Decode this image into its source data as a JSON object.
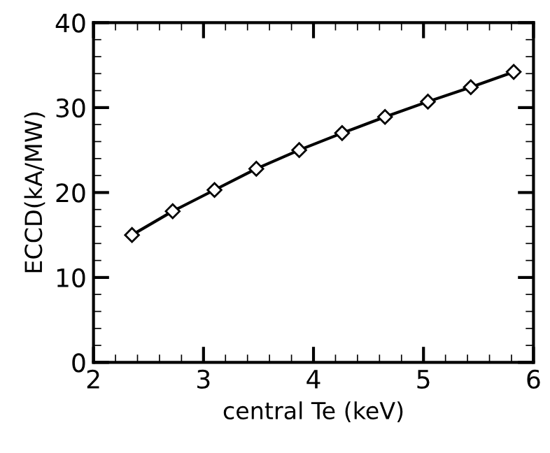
{
  "chart_data": {
    "type": "line",
    "xlabel": "central Te (keV)",
    "ylabel": "ECCD(kA/MW)",
    "x": [
      2.35,
      2.72,
      3.1,
      3.48,
      3.87,
      4.26,
      4.65,
      5.04,
      5.43,
      5.82
    ],
    "series": [
      {
        "color": "#000000",
        "values": [
          15,
          17.8,
          20.3,
          22.8,
          25,
          27,
          28.9,
          30.7,
          32.4,
          34.2
        ]
      }
    ],
    "xlim": [
      2,
      6
    ],
    "ylim": [
      0,
      40
    ],
    "xticks": [
      2,
      3,
      4,
      5,
      6
    ],
    "yticks": [
      0,
      10,
      20,
      30,
      40
    ],
    "marker": "diamond",
    "line_style": "solid",
    "grid": false,
    "legend": false
  }
}
